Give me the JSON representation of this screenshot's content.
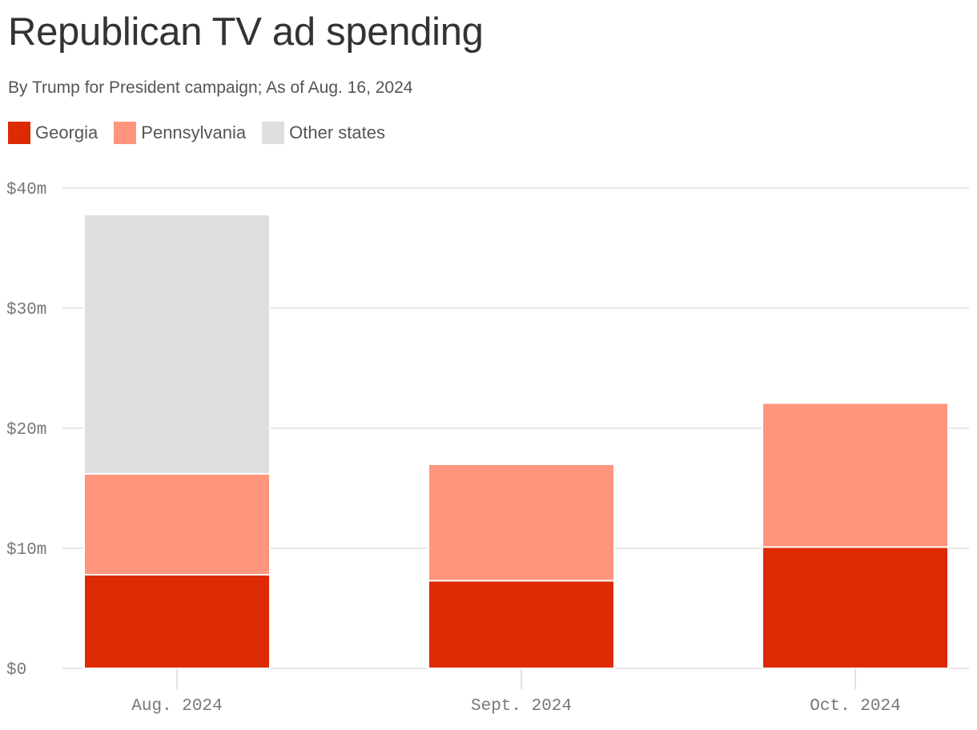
{
  "chart_data": {
    "type": "bar",
    "stacked": true,
    "title": "Republican TV ad spending",
    "subtitle": "By Trump for President campaign; As of Aug. 16, 2024",
    "categories": [
      "Aug. 2024",
      "Sept. 2024",
      "Oct. 2024"
    ],
    "series": [
      {
        "name": "Georgia",
        "color": "#dd2a02",
        "values": [
          7.8,
          7.3,
          10.1
        ]
      },
      {
        "name": "Pennsylvania",
        "color": "#ff957c",
        "values": [
          8.4,
          9.7,
          12.0
        ]
      },
      {
        "name": "Other states",
        "color": "#dfdfdf",
        "values": [
          21.6,
          0,
          0
        ]
      }
    ],
    "ylim": [
      0,
      40
    ],
    "yticks": [
      0,
      10,
      20,
      30,
      40
    ],
    "ytick_labels": [
      "$0",
      "$10m",
      "$20m",
      "$30m",
      "$40m"
    ],
    "xlabel": "",
    "ylabel": "",
    "grid": true,
    "legend_placement": "top-left"
  }
}
